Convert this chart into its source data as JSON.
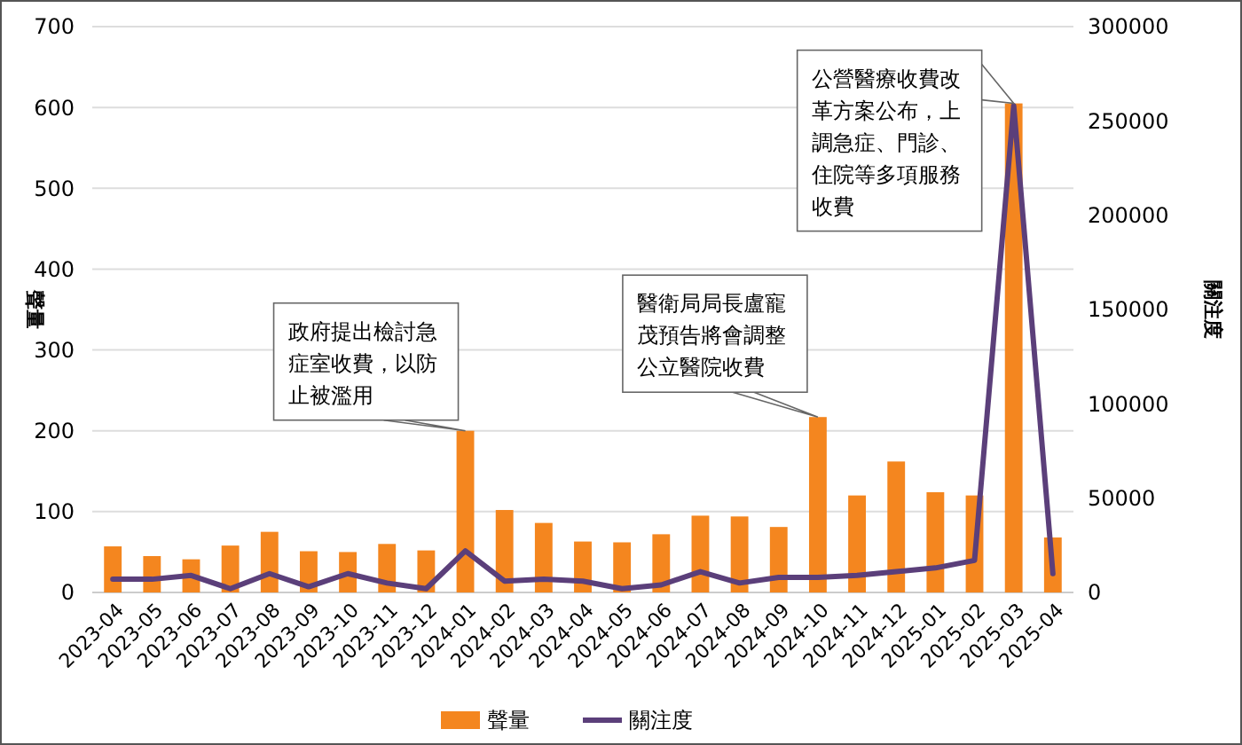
{
  "chart_data": {
    "type": "bar",
    "ylabel": "聲量",
    "y2label": "關注度",
    "categories": [
      "2023-04",
      "2023-05",
      "2023-06",
      "2023-07",
      "2023-08",
      "2023-09",
      "2023-10",
      "2023-11",
      "2023-12",
      "2024-01",
      "2024-02",
      "2024-03",
      "2024-04",
      "2024-05",
      "2024-06",
      "2024-07",
      "2024-08",
      "2024-09",
      "2024-10",
      "2024-11",
      "2024-12",
      "2025-01",
      "2025-02",
      "2025-03",
      "2025-04"
    ],
    "series": [
      {
        "name": "聲量",
        "color": "#f4861f",
        "values": [
          57,
          45,
          41,
          58,
          75,
          51,
          50,
          60,
          52,
          200,
          102,
          86,
          63,
          62,
          72,
          95,
          94,
          81,
          217,
          120,
          162,
          124,
          120,
          605,
          68
        ]
      },
      {
        "name": "關注度",
        "type": "line",
        "axis": "y2",
        "color": "#5b3f7a",
        "values": [
          7000,
          7000,
          9000,
          2000,
          10000,
          3000,
          10000,
          5000,
          2000,
          22000,
          6000,
          7000,
          6000,
          2000,
          4000,
          11000,
          5000,
          8000,
          8000,
          9000,
          11000,
          13000,
          17000,
          258000,
          10000
        ]
      }
    ],
    "ylim": [
      0,
      700
    ],
    "yticks": [
      0,
      100,
      200,
      300,
      400,
      500,
      600,
      700
    ],
    "y2lim": [
      0,
      300000
    ],
    "y2ticks": [
      0,
      50000,
      100000,
      150000,
      200000,
      250000,
      300000
    ],
    "grid": "y",
    "legend": "bottom",
    "marker": "none",
    "line_style": "solid",
    "annotations": [
      {
        "text": "政府提出檢討急症室收費，以防止被濫用",
        "x": "2024-01",
        "y": 200
      },
      {
        "text": "醫衛局局長盧寵茂預告將會調整公立醫院收費",
        "x": "2024-10",
        "y": 217
      },
      {
        "text": "公營醫療收費改革方案公布，上調急症、門診、住院等多項服務收費",
        "x": "2025-03",
        "y": 605
      }
    ]
  }
}
